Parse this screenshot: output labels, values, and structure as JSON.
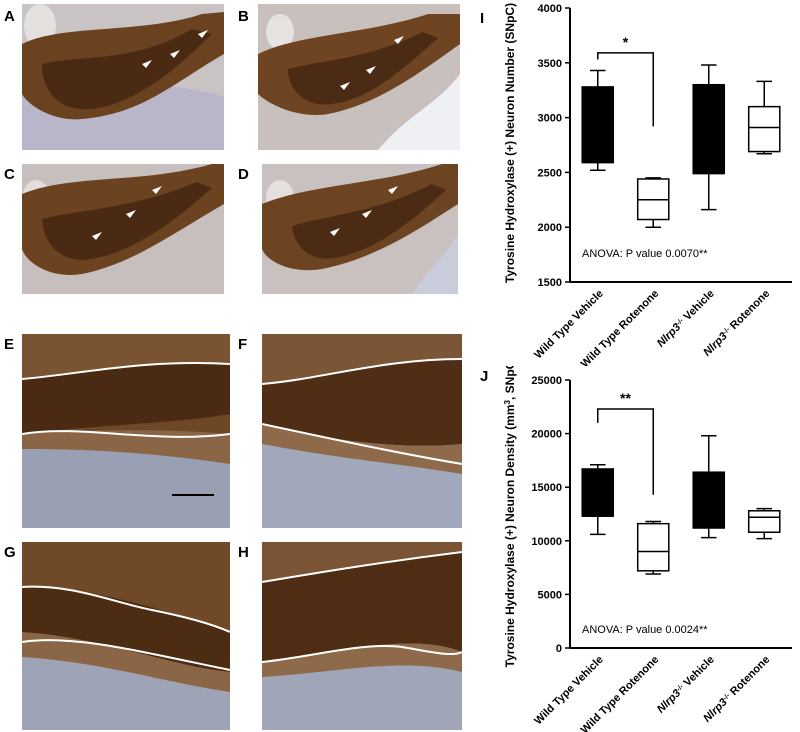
{
  "panels": {
    "A": "A",
    "B": "B",
    "C": "C",
    "D": "D",
    "E": "E",
    "F": "F",
    "G": "G",
    "H": "H",
    "I": "I",
    "J": "J"
  },
  "colors": {
    "tissue_dark": "#5a3418",
    "tissue_mid": "#8a5a30",
    "tissue_light": "#c9b9a8",
    "background_blue": "#b9c2d6",
    "trace_line": "#ffffff"
  },
  "chart_data": [
    {
      "type": "box",
      "panel": "I",
      "ylabel": "Tyrosine Hydroxylase (+) Neuron Number (SNpC)",
      "ylim": [
        1500,
        4000
      ],
      "yticks": [
        "1500",
        "2000",
        "2500",
        "3000",
        "3500",
        "4000"
      ],
      "ytick_values": [
        1500,
        2000,
        2500,
        3000,
        3500,
        4000
      ],
      "categories": [
        {
          "pre": "Wild Type Vehicle",
          "gene": "",
          "sup": "",
          "post": ""
        },
        {
          "pre": "Wild Type Rotenone",
          "gene": "",
          "sup": "",
          "post": ""
        },
        {
          "pre": "",
          "gene": "Nlrp3",
          "sup": "-/-",
          "post": " Vehicle"
        },
        {
          "pre": "",
          "gene": "Nlrp3",
          "sup": "-/-",
          "post": " Rotenone"
        }
      ],
      "boxes": [
        {
          "min": 2520,
          "q1": 2590,
          "median": 2590,
          "q3": 3280,
          "max": 3430,
          "filled": true
        },
        {
          "min": 2000,
          "q1": 2070,
          "median": 2250,
          "q3": 2440,
          "max": 2450,
          "filled": false
        },
        {
          "min": 2160,
          "q1": 2490,
          "median": 2490,
          "q3": 3300,
          "max": 3480,
          "filled": true
        },
        {
          "min": 2670,
          "q1": 2690,
          "median": 2910,
          "q3": 3100,
          "max": 3330,
          "filled": false
        }
      ],
      "significance": {
        "from": 0,
        "to": 1,
        "label": "*",
        "bar_y": 3590,
        "tick_left_y": 3530,
        "tick_right_y": 2920
      },
      "annotation": "ANOVA: P value 0.0070**",
      "annotation_y": 1730
    },
    {
      "type": "box",
      "panel": "J",
      "ylabel_pre": "Tyrosine Hydroxylase (+) Neuron Density (mm",
      "ylabel_sup": "3",
      "ylabel_post": ", SNpC)",
      "ylim": [
        0,
        25000
      ],
      "yticks": [
        "0",
        "5000",
        "10000",
        "15000",
        "20000",
        "25000"
      ],
      "ytick_values": [
        0,
        5000,
        10000,
        15000,
        20000,
        25000
      ],
      "categories": [
        {
          "pre": "Wild Type Vehicle",
          "gene": "",
          "sup": "",
          "post": ""
        },
        {
          "pre": "Wild Type Rotenone",
          "gene": "",
          "sup": "",
          "post": ""
        },
        {
          "pre": "",
          "gene": "Nlrp3",
          "sup": "-/-",
          "post": " Vehicle"
        },
        {
          "pre": "",
          "gene": "Nlrp3",
          "sup": "-/-",
          "post": " Rotenone"
        }
      ],
      "boxes": [
        {
          "min": 10600,
          "q1": 12300,
          "median": 12300,
          "q3": 16700,
          "max": 17100,
          "filled": true
        },
        {
          "min": 6900,
          "q1": 7200,
          "median": 9000,
          "q3": 11600,
          "max": 11800,
          "filled": false
        },
        {
          "min": 10300,
          "q1": 11200,
          "median": 11200,
          "q3": 16400,
          "max": 19800,
          "filled": true
        },
        {
          "min": 10200,
          "q1": 10800,
          "median": 12200,
          "q3": 12800,
          "max": 13000,
          "filled": false
        }
      ],
      "significance": {
        "from": 0,
        "to": 1,
        "label": "**",
        "bar_y": 22300,
        "tick_left_y": 21000,
        "tick_right_y": 14300
      },
      "annotation": "ANOVA: P value 0.0024**",
      "annotation_y": 1400
    }
  ]
}
